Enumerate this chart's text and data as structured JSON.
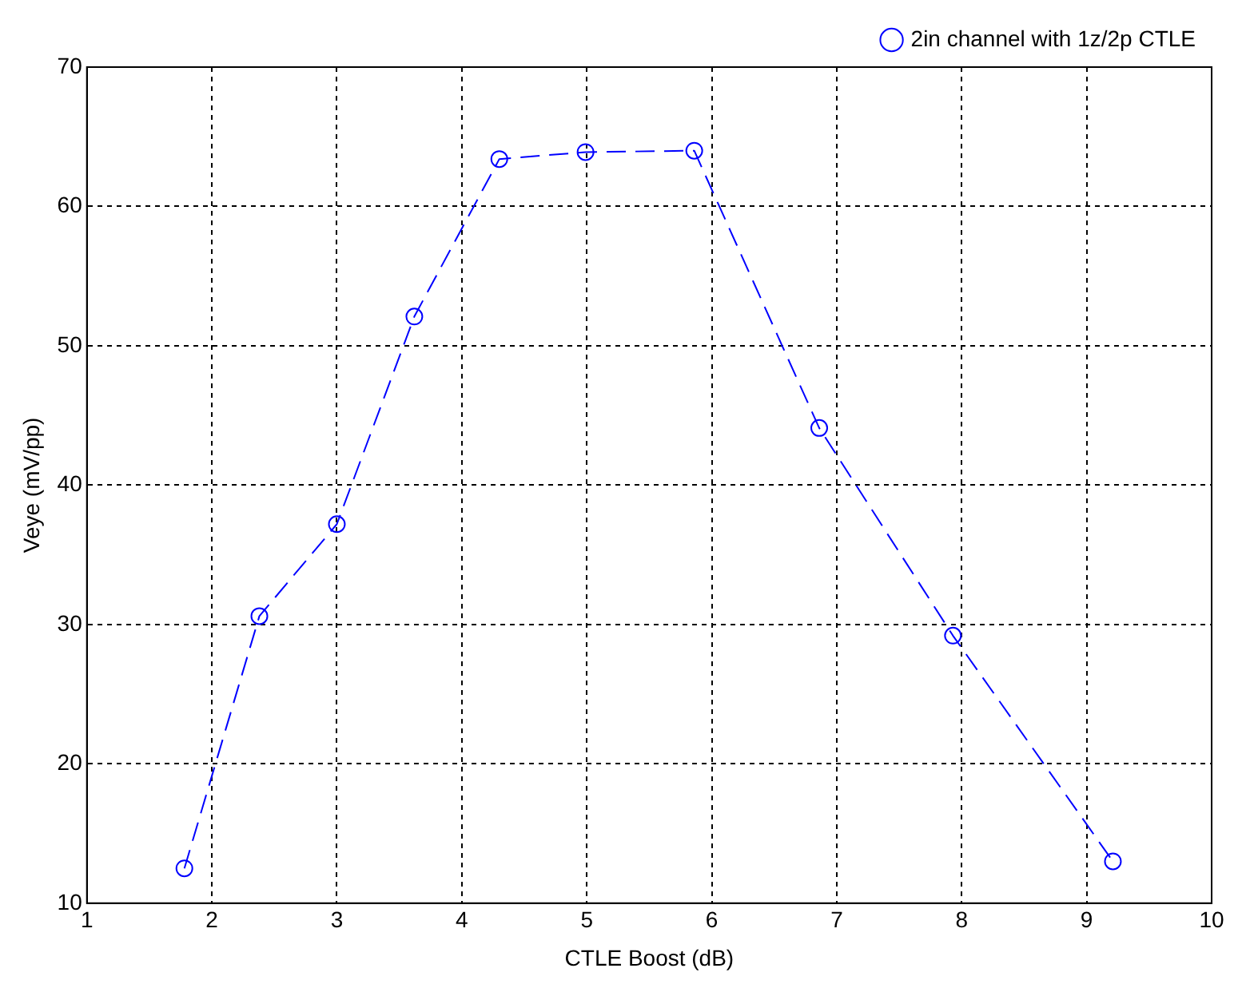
{
  "chart_data": {
    "type": "line",
    "xlabel": "CTLE Boost (dB)",
    "ylabel": "Veye (mV/pp)",
    "x": [
      1.78,
      2.38,
      3.0,
      3.62,
      4.3,
      4.99,
      5.86,
      6.86,
      7.93,
      9.21
    ],
    "series": [
      {
        "name": "2in channel with 1z/2p CTLE",
        "color": "#0000ff",
        "values": [
          12.5,
          30.6,
          37.2,
          52.1,
          63.4,
          63.9,
          64.0,
          44.1,
          29.2,
          13.0
        ]
      }
    ],
    "xlim": [
      1,
      10
    ],
    "xticks": [
      1,
      2,
      3,
      4,
      5,
      6,
      7,
      8,
      9,
      10
    ],
    "ylim": [
      10,
      70
    ],
    "yticks": [
      10,
      20,
      30,
      40,
      50,
      60,
      70
    ],
    "grid": true,
    "legend": "top right",
    "marker": "circle",
    "line_style": "dashed"
  }
}
